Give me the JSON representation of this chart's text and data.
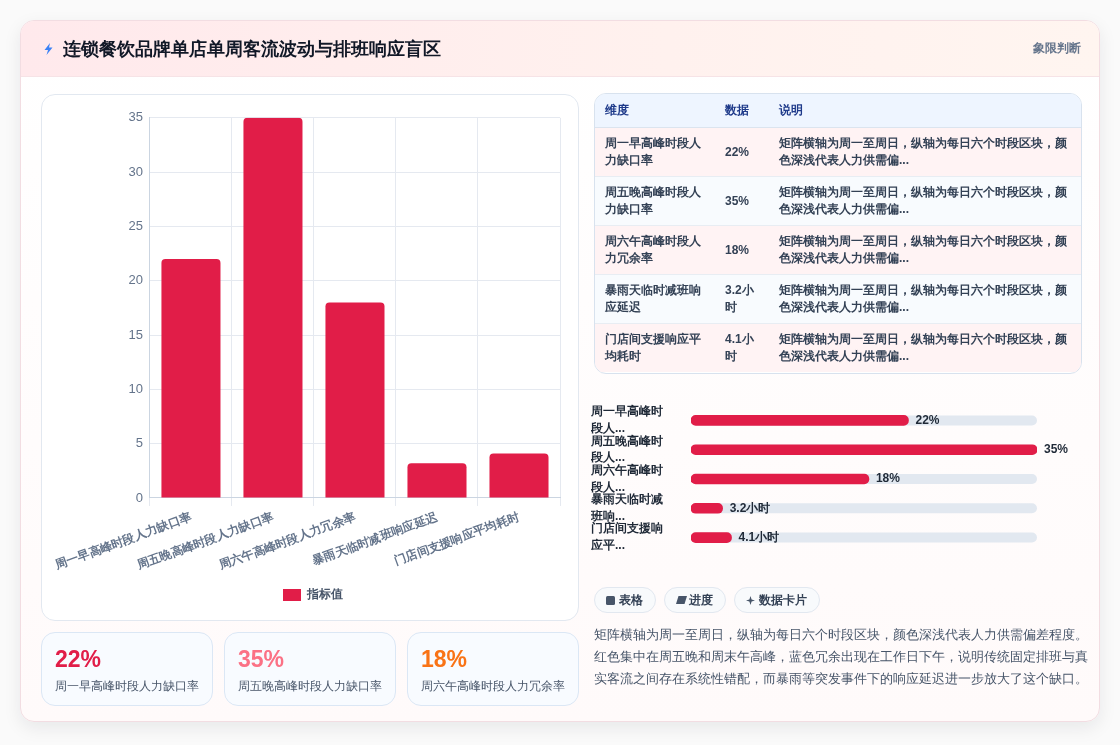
{
  "chart_data": [
    {
      "type": "bar",
      "title": "连锁餐饮品牌单店单周客流波动与排班响应盲区",
      "annotations": [
        "象限判断"
      ],
      "categories": [
        "周一早高峰时段人力缺口率",
        "周五晚高峰时段人力缺口率",
        "周六午高峰时段人力冗余率",
        "暴雨天临时减班响应延迟",
        "门店间支援响应平均耗时"
      ],
      "series": [
        {
          "name": "指标值",
          "color": "#e11d48",
          "values": [
            22,
            35,
            18,
            3.2,
            4.1
          ]
        }
      ],
      "ylim": [
        0,
        35
      ],
      "yticks": [
        0,
        5,
        10,
        15,
        20,
        25,
        30,
        35
      ],
      "grid": true,
      "legend": "bottom"
    },
    {
      "type": "other",
      "annotations": [
        "维度",
        "数据",
        "说明",
        "矩阵横轴为周一至周日，纵轴为每日六个时段区块，颜色深浅代表人力供需偏...",
        "矩阵横轴为周一至周日，纵轴为每日六个时段区块，颜色深浅代表人力供需偏...",
        "矩阵横轴为周一至周日，纵轴为每日六个时段区块，颜色深浅代表人力供需偏...",
        "矩阵横轴为周一至周日，纵轴为每日六个时段区块，颜色深浅代表人力供需偏...",
        "矩阵横轴为周一至周日，纵轴为每日六个时段区块，颜色深浅代表人力供需偏..."
      ],
      "categories": [
        "周一早高峰时段人力缺口率",
        "周五晚高峰时段人力缺口率",
        "周六午高峰时段人力冗余率",
        "暴雨天临时减班响应延迟",
        "门店间支援响应平均耗时"
      ],
      "value_labels": [
        "22%",
        "35%",
        "18%",
        "3.2小时",
        "4.1小时"
      ]
    },
    {
      "type": "bar",
      "orientation": "horizontal",
      "categories": [
        "周一早高峰时段人...",
        "周五晚高峰时段人...",
        "周六午高峰时段人...",
        "暴雨天临时减班响...",
        "门店间支援响应平..."
      ],
      "values": [
        22,
        35,
        18,
        3.2,
        4.1
      ],
      "value_labels": [
        "22%",
        "35%",
        "18%",
        "3.2小时",
        "4.1小时"
      ],
      "color": "#e11d48"
    },
    {
      "type": "other",
      "categories": [
        "周一早高峰时段人力缺口率",
        "周五晚高峰时段人力缺口率",
        "周六午高峰时段人力冗余率"
      ],
      "value_labels": [
        "22%",
        "35%",
        "18%"
      ]
    },
    {
      "type": "other",
      "annotations": [
        "表格",
        "进度",
        "数据卡片",
        "矩阵横轴为周一至周日，纵轴为每日六个时段区块，颜色深浅代表人力供需偏差程度。红色集中在周五晚和周末午高峰，蓝色冗余出现在工作日下午，说明传统固定排班与真实客流之间存在系统性错配，而暴雨等突发事件下的响应延迟进一步放大了这个缺口。"
      ]
    }
  ]
}
